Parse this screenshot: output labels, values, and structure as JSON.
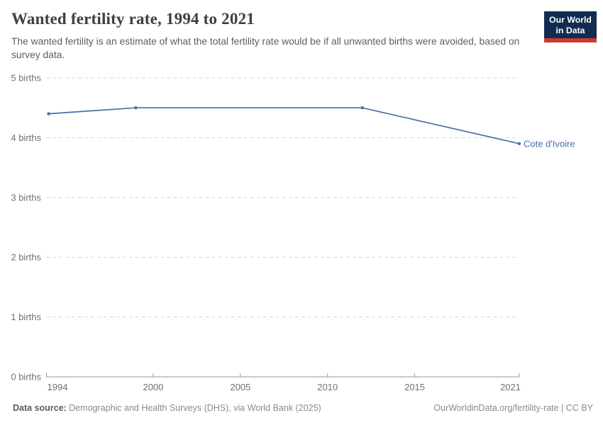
{
  "header": {
    "logo": {
      "line1": "Our World",
      "line2": "in Data",
      "bg_color": "#102c52",
      "bar_color": "#cc3a2f"
    }
  },
  "chart_data": {
    "type": "line",
    "title": "Wanted fertility rate, 1994 to 2021",
    "subtitle": "The wanted fertility is an estimate of what the total fertility rate would be if all unwanted births were avoided, based on survey data.",
    "x": [
      1994,
      1999,
      2012,
      2021
    ],
    "series": [
      {
        "name": "Cote d'Ivoire",
        "values": [
          4.4,
          4.5,
          4.5,
          3.9
        ],
        "color": "#4a6da8"
      }
    ],
    "xlim": [
      1994,
      2021
    ],
    "ylim": [
      0,
      5
    ],
    "x_ticks": [
      1994,
      2000,
      2005,
      2010,
      2015,
      2021
    ],
    "y_ticks": [
      0,
      1,
      2,
      3,
      4,
      5
    ],
    "y_tick_suffix": " births",
    "grid": "horizontal-dashed",
    "legend_position": "end-of-line-label",
    "markers": true
  },
  "footer": {
    "datasource_label": "Data source:",
    "datasource_text": " Demographic and Health Surveys (DHS), via World Bank (2025)",
    "link_text": "OurWorldinData.org/fertility-rate | CC BY"
  }
}
